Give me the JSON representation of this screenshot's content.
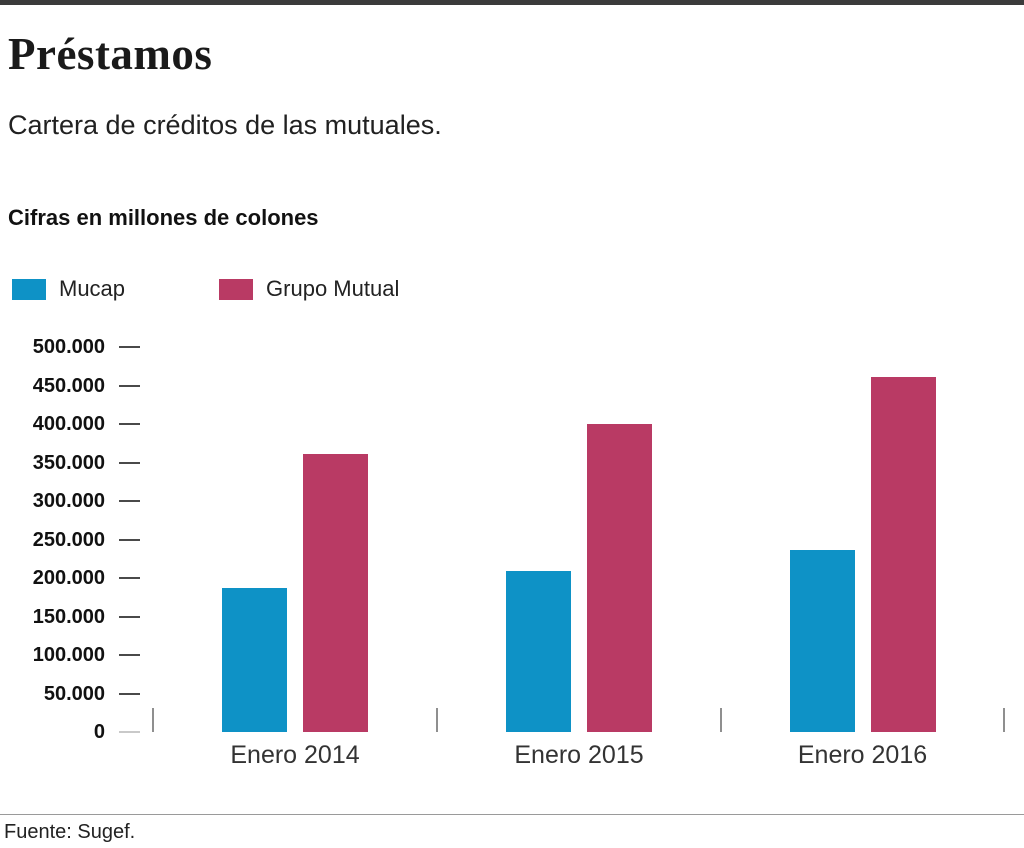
{
  "header": {
    "title": "Préstamos",
    "subtitle": "Cartera de créditos de las mutuales."
  },
  "footer": {
    "source": "Fuente: Sugef."
  },
  "chart_data": {
    "type": "bar",
    "title": "Préstamos",
    "subtitle": "Cartera de créditos de las mutuales.",
    "units_label": "Cifras en millones de colones",
    "categories": [
      "Enero 2014",
      "Enero 2015",
      "Enero 2016"
    ],
    "series": [
      {
        "name": "Mucap",
        "color": "#0e92c6",
        "values": [
          187000,
          209000,
          236000
        ]
      },
      {
        "name": "Grupo Mutual",
        "color": "#b93a64",
        "values": [
          361000,
          400000,
          461000
        ]
      }
    ],
    "xlabel": "",
    "ylabel": "",
    "ylim": [
      0,
      500000
    ],
    "ytick_step": 50000,
    "ytick_labels": [
      "500.000",
      "450.000",
      "400.000",
      "350.000",
      "300.000",
      "250.000",
      "200.000",
      "150.000",
      "100.000",
      "50.000",
      "0"
    ],
    "grid": false,
    "legend_position": "top-left",
    "source": "Fuente: Sugef."
  }
}
